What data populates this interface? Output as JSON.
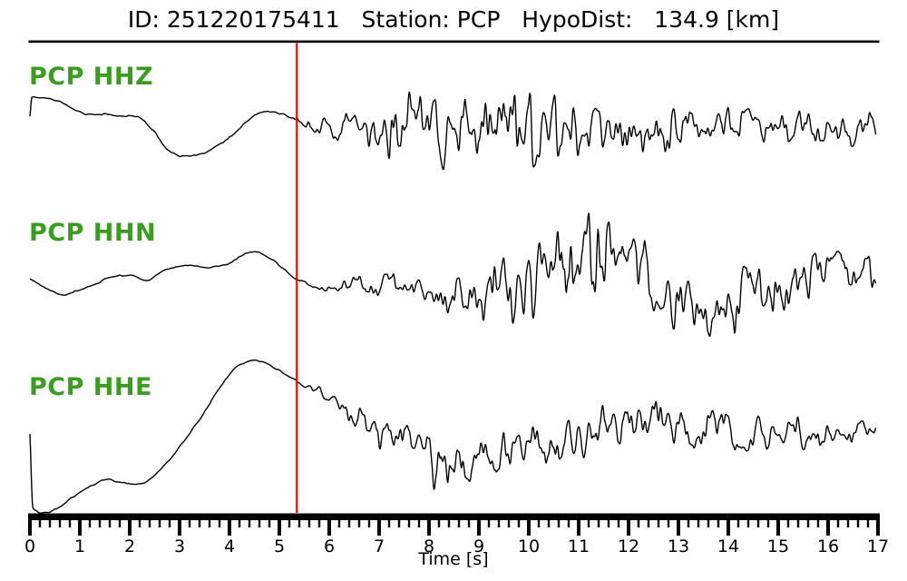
{
  "header": {
    "title": "ID: 251220175411   Station: PCP   HypoDist:   134.9 [km]"
  },
  "colors": {
    "background": "#ffffff",
    "trace": "#000000",
    "axis": "#000000",
    "pick_line": "#ff0000",
    "trace_label_green": "#3a9d1f"
  },
  "chart_data": {
    "type": "line",
    "subtype": "seismogram-three-component",
    "title": "ID: 251220175411   Station: PCP   HypoDist:   134.9 [km]",
    "event_id": "251220175411",
    "station": "PCP",
    "hypodist_km": 134.9,
    "xlabel": "Time [s]",
    "x_range": [
      0,
      17
    ],
    "x_major_tick_step": 1,
    "x_minor_tick_step": 0.2,
    "x_tick_labels": [
      "0",
      "1",
      "2",
      "3",
      "4",
      "5",
      "6",
      "7",
      "8",
      "9",
      "10",
      "11",
      "12",
      "13",
      "14",
      "15",
      "16",
      "17"
    ],
    "grid": false,
    "legend": false,
    "pick_time_s": 5.35,
    "traces": [
      {
        "label": "PCP HHZ",
        "center_y": 140,
        "seed": 8,
        "base": [
          [
            0,
            12
          ],
          [
            0.04,
            33
          ],
          [
            0.3,
            32
          ],
          [
            0.6,
            28
          ],
          [
            0.95,
            18
          ],
          [
            1.2,
            14
          ],
          [
            1.5,
            14
          ],
          [
            1.8,
            13
          ],
          [
            2.1,
            12
          ],
          [
            2.45,
            -2
          ],
          [
            2.75,
            -24
          ],
          [
            3.05,
            -32
          ],
          [
            3.35,
            -31
          ],
          [
            3.75,
            -21
          ],
          [
            4.3,
            3
          ],
          [
            4.65,
            17
          ],
          [
            5.0,
            15
          ],
          [
            5.35,
            8
          ],
          [
            5.7,
            3
          ],
          [
            6.1,
            0
          ],
          [
            17,
            0
          ]
        ],
        "noise_env": [
          [
            0,
            1
          ],
          [
            5.2,
            1.2
          ],
          [
            5.45,
            6
          ],
          [
            5.9,
            13
          ],
          [
            6.3,
            20
          ],
          [
            6.9,
            30
          ],
          [
            7.4,
            38
          ],
          [
            7.9,
            55
          ],
          [
            8.2,
            72
          ],
          [
            8.5,
            55
          ],
          [
            8.9,
            50
          ],
          [
            9.35,
            88
          ],
          [
            9.6,
            50
          ],
          [
            10.1,
            42
          ],
          [
            10.6,
            38
          ],
          [
            11.2,
            32
          ],
          [
            12.0,
            30
          ],
          [
            13.0,
            26
          ],
          [
            14.0,
            25
          ],
          [
            15.0,
            22
          ],
          [
            16.0,
            22
          ],
          [
            17,
            20
          ]
        ]
      },
      {
        "label": "PCP HHN",
        "center_y": 310,
        "seed": 21,
        "base": [
          [
            0,
            3
          ],
          [
            0.35,
            -8
          ],
          [
            0.65,
            -15
          ],
          [
            1.0,
            -9
          ],
          [
            1.3,
            -3
          ],
          [
            1.65,
            5
          ],
          [
            2.05,
            7
          ],
          [
            2.3,
            1
          ],
          [
            2.75,
            13
          ],
          [
            3.2,
            18
          ],
          [
            3.55,
            15
          ],
          [
            3.9,
            18
          ],
          [
            4.5,
            33
          ],
          [
            4.8,
            26
          ],
          [
            5.1,
            13
          ],
          [
            5.35,
            2
          ],
          [
            5.75,
            -5
          ],
          [
            6.1,
            -8
          ],
          [
            6.6,
            -2
          ],
          [
            7.1,
            -2
          ],
          [
            7.6,
            -6
          ],
          [
            8.1,
            -12
          ],
          [
            8.6,
            -20
          ],
          [
            9.1,
            -16
          ],
          [
            9.6,
            -10
          ],
          [
            10.2,
            8
          ],
          [
            10.8,
            18
          ],
          [
            11.4,
            25
          ],
          [
            12.0,
            15
          ],
          [
            12.6,
            0
          ],
          [
            13.3,
            -30
          ],
          [
            13.9,
            -25
          ],
          [
            14.4,
            -18
          ],
          [
            15.0,
            -5
          ],
          [
            15.6,
            3
          ],
          [
            16.2,
            12
          ],
          [
            16.6,
            8
          ],
          [
            17,
            3
          ]
        ],
        "noise_env": [
          [
            0,
            0.8
          ],
          [
            5.3,
            1
          ],
          [
            5.6,
            2.5
          ],
          [
            6.1,
            6
          ],
          [
            6.6,
            12
          ],
          [
            7.1,
            16
          ],
          [
            7.7,
            20
          ],
          [
            8.3,
            26
          ],
          [
            8.7,
            30
          ],
          [
            9.2,
            32
          ],
          [
            9.8,
            40
          ],
          [
            10.4,
            55
          ],
          [
            11.0,
            60
          ],
          [
            11.5,
            62
          ],
          [
            12.0,
            48
          ],
          [
            12.6,
            42
          ],
          [
            13.2,
            36
          ],
          [
            13.8,
            38
          ],
          [
            14.4,
            40
          ],
          [
            15.0,
            36
          ],
          [
            15.6,
            32
          ],
          [
            16.2,
            30
          ],
          [
            17,
            24
          ]
        ]
      },
      {
        "label": "PCP HHE",
        "center_y": 480,
        "seed": 5,
        "base": [
          [
            0,
            2
          ],
          [
            0.06,
            -80
          ],
          [
            0.25,
            -85
          ],
          [
            0.55,
            -80
          ],
          [
            0.85,
            -68
          ],
          [
            1.2,
            -56
          ],
          [
            1.55,
            -48
          ],
          [
            1.85,
            -52
          ],
          [
            2.2,
            -53
          ],
          [
            2.6,
            -38
          ],
          [
            3.0,
            -12
          ],
          [
            3.4,
            18
          ],
          [
            3.8,
            52
          ],
          [
            4.2,
            78
          ],
          [
            4.5,
            83
          ],
          [
            4.8,
            78
          ],
          [
            5.1,
            68
          ],
          [
            5.35,
            60
          ],
          [
            5.7,
            51
          ],
          [
            6.0,
            42
          ],
          [
            6.35,
            30
          ],
          [
            6.8,
            12
          ],
          [
            7.2,
            0
          ],
          [
            7.8,
            -15
          ],
          [
            8.3,
            -22
          ],
          [
            8.7,
            -25
          ],
          [
            9.2,
            -22
          ],
          [
            9.7,
            -20
          ],
          [
            10.2,
            -10
          ],
          [
            10.8,
            -3
          ],
          [
            11.4,
            8
          ],
          [
            12.0,
            18
          ],
          [
            12.5,
            20
          ],
          [
            13.1,
            12
          ],
          [
            13.7,
            6
          ],
          [
            14.3,
            2
          ],
          [
            15.0,
            0
          ],
          [
            15.7,
            1
          ],
          [
            16.3,
            2
          ],
          [
            17,
            4
          ]
        ],
        "noise_env": [
          [
            0,
            0.8
          ],
          [
            5.3,
            1
          ],
          [
            5.55,
            3.5
          ],
          [
            5.9,
            6
          ],
          [
            6.3,
            11
          ],
          [
            6.8,
            18
          ],
          [
            7.3,
            24
          ],
          [
            7.9,
            28
          ],
          [
            8.15,
            52
          ],
          [
            8.45,
            40
          ],
          [
            8.8,
            26
          ],
          [
            9.4,
            24
          ],
          [
            10.0,
            26
          ],
          [
            10.6,
            28
          ],
          [
            11.2,
            30
          ],
          [
            11.9,
            30
          ],
          [
            12.5,
            28
          ],
          [
            13.2,
            26
          ],
          [
            14.0,
            24
          ],
          [
            15.0,
            22
          ],
          [
            16.0,
            18
          ],
          [
            17,
            16
          ]
        ]
      }
    ]
  }
}
